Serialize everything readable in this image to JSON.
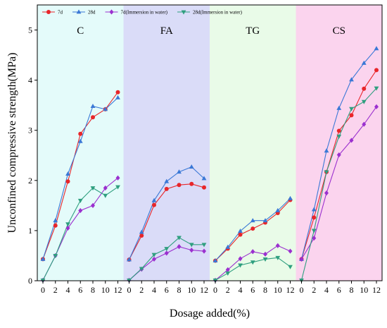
{
  "chart_data": {
    "type": "line",
    "xlabel": "Dosage added(%)",
    "ylabel": "Unconfined compressive strength(MPa)",
    "ylim": [
      0,
      5.5
    ],
    "yticks": [
      "0",
      "1",
      "2",
      "3",
      "4",
      "5"
    ],
    "xtick_labels": [
      "0",
      "2",
      "4",
      "6",
      "8",
      "10",
      "12"
    ],
    "legend_position": "top-left",
    "grid": false,
    "x": [
      0,
      2,
      4,
      6,
      8,
      10,
      12
    ],
    "series_styles": [
      {
        "name": "7d",
        "color": "#e8262a",
        "marker": "circle"
      },
      {
        "name": "28d",
        "color": "#3a78d6",
        "marker": "triangle-up"
      },
      {
        "name": "7d(Immersion in water)",
        "color": "#9b30cf",
        "marker": "diamond"
      },
      {
        "name": "28d(Immersion in water)",
        "color": "#2f9f7f",
        "marker": "triangle-down"
      }
    ],
    "panels": [
      {
        "label": "C",
        "color": "#e4fbfa",
        "series": [
          {
            "name": "7d",
            "values": [
              0.43,
              1.1,
              1.98,
              2.93,
              3.26,
              3.42,
              3.76
            ]
          },
          {
            "name": "28d",
            "values": [
              0.43,
              1.2,
              2.13,
              2.78,
              3.48,
              3.42,
              3.65
            ]
          },
          {
            "name": "7d(Immersion in water)",
            "values": [
              0.01,
              0.5,
              1.05,
              1.4,
              1.5,
              1.85,
              2.05
            ]
          },
          {
            "name": "28d(Immersion in water)",
            "values": [
              0.01,
              0.5,
              1.13,
              1.6,
              1.85,
              1.7,
              1.87
            ]
          }
        ]
      },
      {
        "label": "FA",
        "color": "#dadcf8",
        "series": [
          {
            "name": "7d",
            "values": [
              0.42,
              0.9,
              1.51,
              1.83,
              1.91,
              1.93,
              1.86
            ]
          },
          {
            "name": "28d",
            "values": [
              0.42,
              0.97,
              1.6,
              1.98,
              2.17,
              2.27,
              2.04
            ]
          },
          {
            "name": "7d(Immersion in water)",
            "values": [
              0.01,
              0.23,
              0.43,
              0.55,
              0.68,
              0.61,
              0.59
            ]
          },
          {
            "name": "28d(Immersion in water)",
            "values": [
              0.01,
              0.24,
              0.52,
              0.64,
              0.86,
              0.72,
              0.72
            ]
          }
        ]
      },
      {
        "label": "TG",
        "color": "#e9fbe8",
        "series": [
          {
            "name": "7d",
            "values": [
              0.4,
              0.64,
              0.92,
              1.04,
              1.16,
              1.35,
              1.61
            ]
          },
          {
            "name": "28d",
            "values": [
              0.4,
              0.67,
              0.99,
              1.2,
              1.2,
              1.4,
              1.64
            ]
          },
          {
            "name": "7d(Immersion in water)",
            "values": [
              0.01,
              0.22,
              0.44,
              0.58,
              0.53,
              0.7,
              0.59
            ]
          },
          {
            "name": "28d(Immersion in water)",
            "values": [
              0.01,
              0.15,
              0.31,
              0.37,
              0.43,
              0.46,
              0.28
            ]
          }
        ]
      },
      {
        "label": "CS",
        "color": "#fbd4ee",
        "series": [
          {
            "name": "7d",
            "values": [
              0.43,
              1.26,
              2.17,
              2.99,
              3.3,
              3.83,
              4.2
            ]
          },
          {
            "name": "28d",
            "values": [
              0.43,
              1.42,
              2.59,
              3.44,
              4.01,
              4.34,
              4.63
            ]
          },
          {
            "name": "7d(Immersion in water)",
            "values": [
              0.43,
              0.85,
              1.75,
              2.51,
              2.8,
              3.12,
              3.47
            ]
          },
          {
            "name": "28d(Immersion in water)",
            "values": [
              0.01,
              1.0,
              2.17,
              2.88,
              3.43,
              3.57,
              3.84
            ]
          }
        ]
      }
    ]
  }
}
